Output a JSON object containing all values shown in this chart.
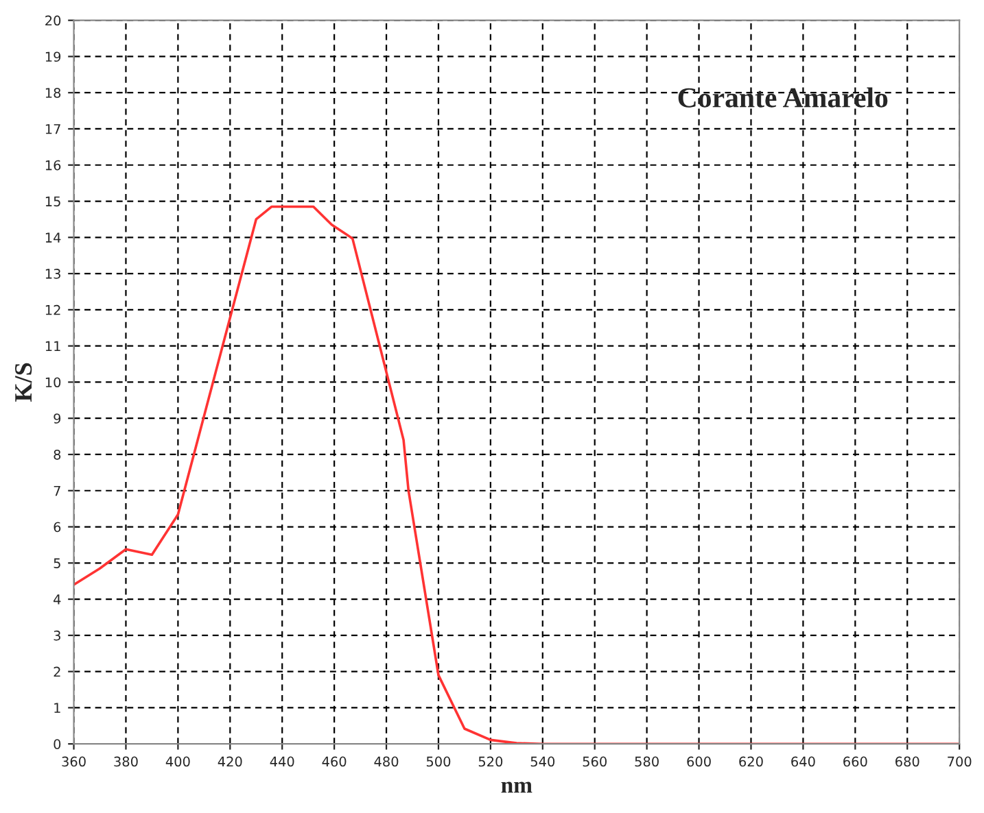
{
  "chart_data": {
    "type": "line",
    "annotations": [
      "Corante Amarelo"
    ],
    "xlabel": "nm",
    "ylabel": "K/S",
    "x": [
      360,
      370,
      380,
      390,
      400,
      430,
      436,
      452,
      459,
      467,
      486.6,
      488.5,
      500,
      510,
      520,
      530,
      540,
      560,
      580,
      600,
      620,
      640,
      660,
      680,
      700
    ],
    "series": [
      {
        "color": "#ff3333",
        "values": [
          4.4,
          4.85,
          5.38,
          5.23,
          6.34,
          14.5,
          14.85,
          14.85,
          14.35,
          13.97,
          8.4,
          7.0,
          1.9,
          0.42,
          0.11,
          0.02,
          0,
          0,
          0,
          0,
          0,
          0,
          0,
          0,
          0
        ]
      }
    ],
    "xlim": [
      360,
      700
    ],
    "ylim": [
      0,
      20
    ],
    "xticks": [
      360,
      380,
      400,
      420,
      440,
      460,
      480,
      500,
      520,
      540,
      560,
      580,
      600,
      620,
      640,
      660,
      680,
      700
    ],
    "yticks": [
      0,
      1,
      2,
      3,
      4,
      5,
      6,
      7,
      8,
      9,
      10,
      11,
      12,
      13,
      14,
      15,
      16,
      17,
      18,
      19,
      20
    ],
    "grid": true,
    "marker": "none",
    "line_style": "solid"
  }
}
